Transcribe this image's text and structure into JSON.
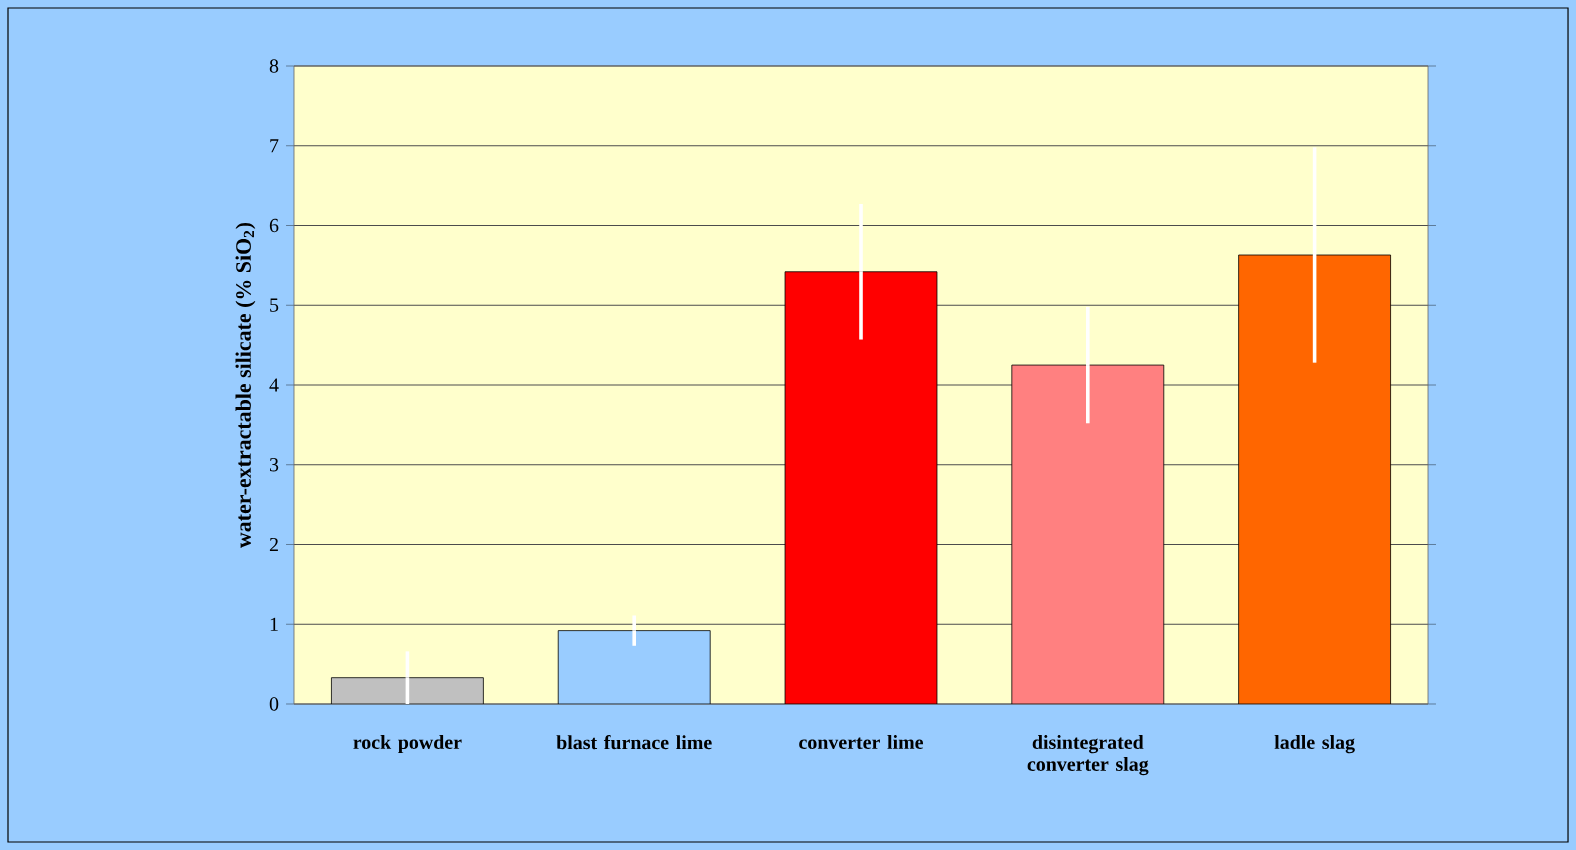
{
  "chart_data": {
    "type": "bar",
    "ylabel": "water-extractable silicate (% SiO$_{2}$)",
    "categories": [
      "rock powder",
      "blast furnace lime",
      "converter lime",
      "disintegrated converter slag",
      "ladle slag"
    ],
    "values": [
      0.33,
      0.92,
      5.42,
      4.25,
      5.63
    ],
    "errors": [
      0.33,
      0.19,
      0.85,
      0.73,
      1.35
    ],
    "colors": [
      "#c0c0c0",
      "#99ccff",
      "#ff0000",
      "#ff8080",
      "#ff6600"
    ],
    "ylim": [
      0,
      8
    ],
    "yticks": [
      0,
      1,
      2,
      3,
      4,
      5,
      6,
      7,
      8
    ],
    "grid": "y"
  }
}
